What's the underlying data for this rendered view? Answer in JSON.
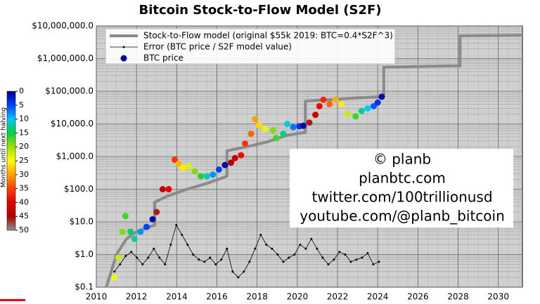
{
  "chart_data": {
    "type": "scatter",
    "title": "Bitcoin Stock-to-Flow Model (S2F)",
    "log_y": true,
    "grid": true,
    "legend": "upper left",
    "xlim": [
      2010,
      2031.2
    ],
    "xticks": [
      2010,
      2012,
      2014,
      2016,
      2018,
      2020,
      2022,
      2024,
      2026,
      2028,
      2030
    ],
    "ylim": [
      0.1,
      10000000
    ],
    "yticks": [
      {
        "value": 0.1,
        "label": "$0.1"
      },
      {
        "value": 1,
        "label": "$1.0"
      },
      {
        "value": 10,
        "label": "$10.0"
      },
      {
        "value": 100,
        "label": "$100.0"
      },
      {
        "value": 1000,
        "label": "$1,000.0"
      },
      {
        "value": 10000,
        "label": "$10,000.0"
      },
      {
        "value": 100000,
        "label": "$100,000.0"
      },
      {
        "value": 1000000,
        "label": "$1,000,000.0"
      },
      {
        "value": 10000000,
        "label": "$10,000,000.0"
      }
    ],
    "colorbar": {
      "label": "Months until next halving",
      "lim": [
        0,
        50
      ],
      "ticks": [
        0,
        5,
        10,
        15,
        20,
        25,
        30,
        35,
        40,
        45,
        50
      ],
      "colors": [
        "#00008b",
        "#0040ff",
        "#00c8ff",
        "#00d040",
        "#a0e000",
        "#ffff00",
        "#ffa000",
        "#ff4000",
        "#e00000",
        "#b00000",
        "#909090"
      ]
    },
    "series": [
      {
        "name": "Stock-to-Flow model (original $55k 2019:  BTC=0.4*S2F^3)",
        "color": "#8a8a8a",
        "style": "line",
        "x": [
          2010.5,
          2011.0,
          2011.5,
          2012.0,
          2012.9,
          2012.9,
          2013.5,
          2014.5,
          2015.5,
          2016.5,
          2016.5,
          2017.5,
          2018.5,
          2019.5,
          2020.4,
          2020.4,
          2021.5,
          2022.5,
          2023.5,
          2024.3,
          2024.3,
          2027.5,
          2028.1,
          2028.1,
          2031.2
        ],
        "values": [
          0.1,
          1,
          3,
          5,
          8,
          40,
          60,
          100,
          150,
          250,
          1500,
          2000,
          2800,
          4500,
          5500,
          50000,
          55000,
          60000,
          65000,
          70000,
          550000,
          600000,
          600000,
          5000000,
          5200000
        ]
      },
      {
        "name": "Error (BTC price / S2F model value)",
        "color": "#000000",
        "style": "line-dots",
        "x": [
          2010.9,
          2011.18,
          2011.46,
          2011.74,
          2012.02,
          2012.3,
          2012.58,
          2012.86,
          2013.14,
          2013.42,
          2013.7,
          2013.98,
          2014.26,
          2014.54,
          2014.82,
          2015.1,
          2015.38,
          2015.66,
          2015.94,
          2016.22,
          2016.5,
          2016.78,
          2017.06,
          2017.34,
          2017.62,
          2017.9,
          2018.18,
          2018.46,
          2018.74,
          2019.02,
          2019.3,
          2019.58,
          2019.86,
          2020.14,
          2020.42,
          2020.7,
          2020.98,
          2021.26,
          2021.54,
          2021.82,
          2022.1,
          2022.38,
          2022.66,
          2022.94,
          2023.22,
          2023.5,
          2023.78,
          2024.06
        ],
        "values": [
          0.3,
          0.5,
          0.9,
          1.2,
          0.8,
          0.5,
          0.8,
          1.5,
          0.8,
          0.5,
          2,
          8,
          4,
          2,
          1,
          0.7,
          0.6,
          0.8,
          0.5,
          0.7,
          1.5,
          0.3,
          0.2,
          0.3,
          0.6,
          1.5,
          4,
          2,
          1.5,
          1,
          0.6,
          0.8,
          1,
          2,
          1.5,
          3,
          1.5,
          0.8,
          0.5,
          0.7,
          1.2,
          1,
          0.6,
          0.7,
          0.8,
          1.1,
          0.5,
          0.6
        ]
      },
      {
        "name": "BTC price",
        "color": "#0000aa",
        "style": "scatter",
        "x": [
          2010.9,
          2011.1,
          2011.3,
          2011.45,
          2011.7,
          2011.9,
          2012.2,
          2012.5,
          2012.8,
          2013.0,
          2013.3,
          2013.6,
          2013.9,
          2014.1,
          2014.3,
          2014.6,
          2014.9,
          2015.2,
          2015.5,
          2015.8,
          2016.1,
          2016.4,
          2016.7,
          2016.9,
          2017.2,
          2017.4,
          2017.7,
          2017.9,
          2018.1,
          2018.4,
          2018.8,
          2018.95,
          2019.3,
          2019.5,
          2019.8,
          2020.1,
          2020.3,
          2020.6,
          2020.9,
          2021.1,
          2021.3,
          2021.6,
          2021.9,
          2022.2,
          2022.5,
          2022.9,
          2023.2,
          2023.5,
          2023.8,
          2024.0,
          2024.2
        ],
        "values": [
          0.2,
          0.8,
          5,
          15,
          5,
          3,
          5,
          7,
          12,
          20,
          100,
          100,
          800,
          600,
          450,
          500,
          350,
          250,
          250,
          280,
          400,
          550,
          650,
          900,
          1100,
          2500,
          5000,
          14000,
          9000,
          7000,
          6300,
          3700,
          5000,
          10000,
          8000,
          8500,
          8800,
          11000,
          19000,
          35000,
          55000,
          40000,
          55000,
          40000,
          20000,
          17000,
          25000,
          30000,
          35000,
          45000,
          68000
        ],
        "months": [
          24,
          22,
          19,
          17,
          14,
          12,
          8,
          5,
          1,
          46,
          43,
          40,
          36,
          29,
          26,
          23,
          19,
          16,
          12,
          8,
          5,
          1,
          45,
          43,
          39,
          36,
          33,
          30,
          27,
          24,
          19,
          17,
          13,
          11,
          7,
          4,
          1,
          46,
          42,
          39,
          37,
          33,
          29,
          26,
          22,
          17,
          13,
          10,
          6,
          4,
          1
        ]
      }
    ],
    "annotation": [
      "© planb",
      "planbtc.com",
      "twitter.com/100trillionusd",
      "youtube.com/@planb_bitcoin"
    ]
  }
}
